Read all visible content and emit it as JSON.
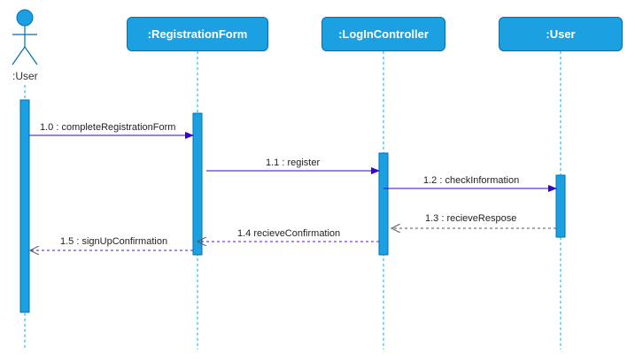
{
  "diagram": {
    "actor": {
      "label": ":User",
      "fill": "#1ba1e2",
      "stroke": "#006eaf"
    },
    "lifelines": [
      {
        "label": ":RegistrationForm"
      },
      {
        "label": ":LogInController"
      },
      {
        "label": ":User"
      }
    ],
    "messages": [
      {
        "label": "1.0 : completeRegistrationForm",
        "kind": "sync"
      },
      {
        "label": "1.1 : register",
        "kind": "sync"
      },
      {
        "label": "1.2 : checkInformation",
        "kind": "sync"
      },
      {
        "label": "1.3  : recieveRespose",
        "kind": "return"
      },
      {
        "label": "1.4 recieveConfirmation",
        "kind": "return"
      },
      {
        "label": "1.5 : signUpConfirmation",
        "kind": "return"
      }
    ],
    "colors": {
      "head_fill": "#1ba1e2",
      "head_stroke": "#006eaf",
      "sync_arrow": "#3700cc",
      "return_arrow": "#6a00ff",
      "dashed_line": "#1ba1e2"
    }
  }
}
